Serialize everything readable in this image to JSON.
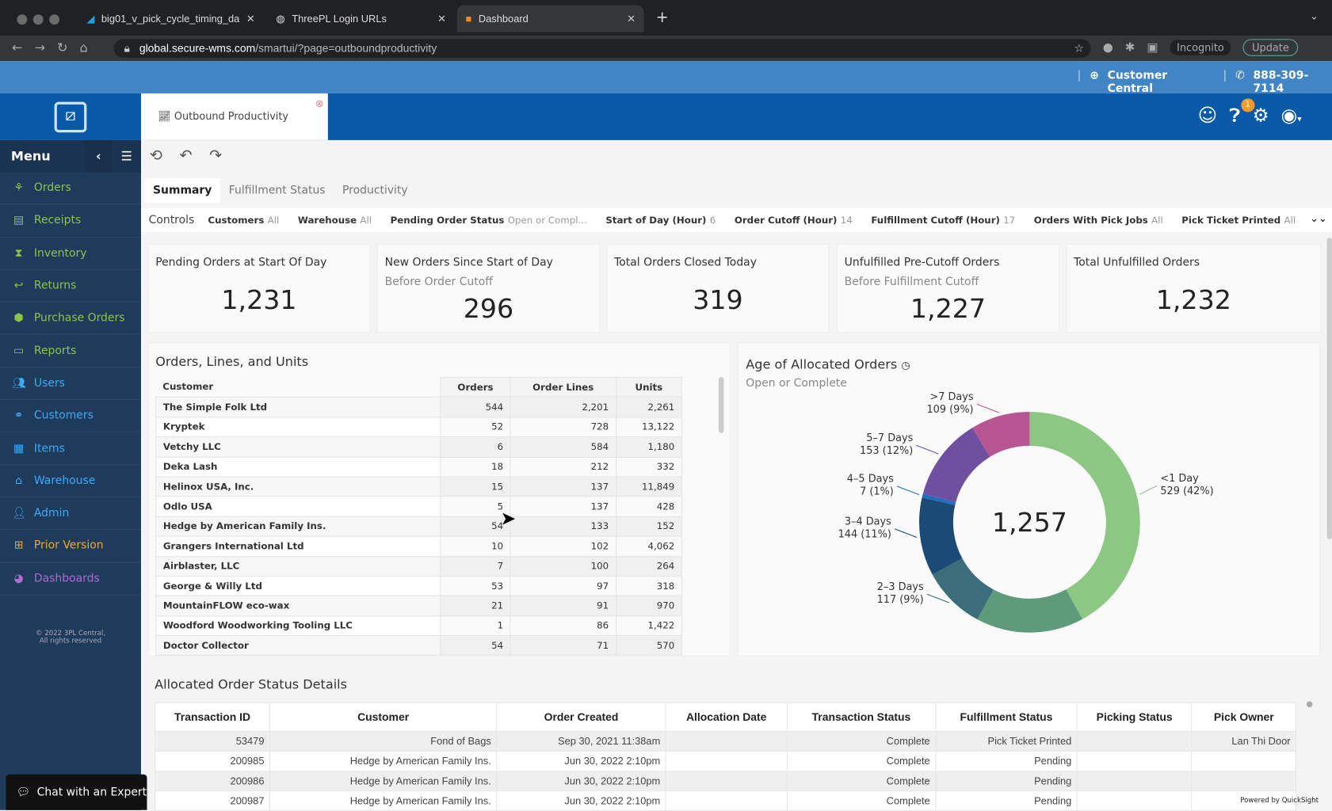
{
  "browser": {
    "tabs": [
      {
        "label": "big01_v_pick_cycle_timing_da",
        "icon": "quicksight-icon"
      },
      {
        "label": "ThreePL Login URLs",
        "icon": "globe-icon"
      },
      {
        "label": "Dashboard",
        "icon": "app-icon"
      }
    ],
    "url_domain": "global.secure-wms.com",
    "url_path": "/smartui/?page=outboundproductivity",
    "profile": "Incognito",
    "update": "Update"
  },
  "topstrip": {
    "customer_central": "Customer Central",
    "phone": "888-309-7114"
  },
  "header": {
    "app_tab": "Outbound Productivity",
    "help_badge": "1"
  },
  "sidebar": {
    "title": "Menu",
    "items": [
      {
        "label": "Orders",
        "icon": "sitemap-icon",
        "color": "#8bc34a"
      },
      {
        "label": "Receipts",
        "icon": "document-icon",
        "color": "#8bc34a"
      },
      {
        "label": "Inventory",
        "icon": "hourglass-icon",
        "color": "#8bc34a"
      },
      {
        "label": "Returns",
        "icon": "reply-icon",
        "color": "#8bc34a"
      },
      {
        "label": "Purchase Orders",
        "icon": "hexagon-icon",
        "color": "#8bc34a"
      },
      {
        "label": "Reports",
        "icon": "id-card-icon",
        "color": "#8bc34a"
      },
      {
        "label": "Users",
        "icon": "users-icon",
        "color": "#3fa9f5"
      },
      {
        "label": "Customers",
        "icon": "handshake-icon",
        "color": "#3fa9f5"
      },
      {
        "label": "Items",
        "icon": "grid-icon",
        "color": "#3fa9f5"
      },
      {
        "label": "Warehouse",
        "icon": "home-icon",
        "color": "#3fa9f5"
      },
      {
        "label": "Admin",
        "icon": "user-icon",
        "color": "#3fa9f5"
      },
      {
        "label": "Prior Version",
        "icon": "archive-icon",
        "color": "#f0a830"
      },
      {
        "label": "Dashboards",
        "icon": "gauge-icon",
        "color": "#b06ad0"
      }
    ],
    "footer1": "© 2022 3PL Central,",
    "footer2": "All rights reserved",
    "chat": "Chat with an Expert"
  },
  "tabs": [
    "Summary",
    "Fulfillment Status",
    "Productivity"
  ],
  "controls": {
    "label": "Controls",
    "items": [
      {
        "k": "Customers",
        "v": "All"
      },
      {
        "k": "Warehouse",
        "v": "All"
      },
      {
        "k": "Pending Order Status",
        "v": "Open or Compl..."
      },
      {
        "k": "Start of Day (Hour)",
        "v": "6"
      },
      {
        "k": "Order Cutoff (Hour)",
        "v": "14"
      },
      {
        "k": "Fulfillment Cutoff (Hour)",
        "v": "17"
      },
      {
        "k": "Orders With Pick Jobs",
        "v": "All"
      },
      {
        "k": "Pick Ticket Printed",
        "v": "All"
      }
    ]
  },
  "kpis": [
    {
      "title": "Pending Orders at Start Of Day",
      "sub": "",
      "value": "1,231"
    },
    {
      "title": "New Orders Since Start of Day",
      "sub": "Before Order Cutoff",
      "value": "296"
    },
    {
      "title": "Total Orders Closed Today",
      "sub": "",
      "value": "319"
    },
    {
      "title": "Unfulfilled Pre-Cutoff Orders",
      "sub": "Before Fulfillment Cutoff",
      "value": "1,227"
    },
    {
      "title": "Total Unfulfilled Orders",
      "sub": "",
      "value": "1,232"
    }
  ],
  "olu": {
    "title": "Orders, Lines, and Units",
    "columns": [
      "Customer",
      "Orders",
      "Order Lines",
      "Units"
    ],
    "rows": [
      [
        "The Simple Folk Ltd",
        "544",
        "2,201",
        "2,261"
      ],
      [
        "Kryptek",
        "52",
        "728",
        "13,122"
      ],
      [
        "Vetchy LLC",
        "6",
        "584",
        "1,180"
      ],
      [
        "Deka Lash",
        "18",
        "212",
        "332"
      ],
      [
        "Helinox USA, Inc.",
        "15",
        "137",
        "11,849"
      ],
      [
        "Odlo USA",
        "5",
        "137",
        "428"
      ],
      [
        "Hedge by American Family Ins.",
        "54",
        "133",
        "152"
      ],
      [
        "Grangers International Ltd",
        "10",
        "102",
        "4,062"
      ],
      [
        "Airblaster, LLC",
        "7",
        "100",
        "264"
      ],
      [
        "George & Willy Ltd",
        "53",
        "97",
        "318"
      ],
      [
        "MountainFLOW eco-wax",
        "21",
        "91",
        "970"
      ],
      [
        "Woodford Woodworking Tooling LLC",
        "1",
        "86",
        "1,422"
      ],
      [
        "Doctor Collector",
        "54",
        "71",
        "570"
      ]
    ]
  },
  "chart_data": {
    "type": "pie",
    "title": "Age of Allocated Orders",
    "subtitle": "Open or Complete",
    "center_total": "1,257",
    "hole": true,
    "slices": [
      {
        "label": "<1 Day",
        "value": 529,
        "text": "529 (42%)",
        "color": "#8cc784"
      },
      {
        "label": "",
        "value": 198,
        "text": "",
        "color": "#5e9b7a"
      },
      {
        "label": "2–3 Days",
        "value": 117,
        "text": "117 (9%)",
        "color": "#3b6e7a"
      },
      {
        "label": "3–4 Days",
        "value": 144,
        "text": "144 (11%)",
        "color": "#1b4a76"
      },
      {
        "label": "4–5 Days",
        "value": 7,
        "text": "7 (1%)",
        "color": "#1e6fc0"
      },
      {
        "label": "5–7 Days",
        "value": 153,
        "text": "153 (12%)",
        "color": "#6f4fa0"
      },
      {
        "label": ">7 Days",
        "value": 109,
        "text": "109 (9%)",
        "color": "#b85592"
      }
    ]
  },
  "aos": {
    "title": "Allocated Order Status Details",
    "columns": [
      "Transaction ID",
      "Customer",
      "Order Created",
      "Allocation Date",
      "Transaction Status",
      "Fulfillment Status",
      "Picking Status",
      "Pick Owner"
    ],
    "rows": [
      [
        "53479",
        "Fond of Bags",
        "Sep 30, 2021 11:38am",
        "",
        "Complete",
        "Pick Ticket Printed",
        "",
        "Lan Thi Door"
      ],
      [
        "200985",
        "Hedge by American Family Ins.",
        "Jun 30, 2022 2:10pm",
        "",
        "Complete",
        "Pending",
        "",
        ""
      ],
      [
        "200986",
        "Hedge by American Family Ins.",
        "Jun 30, 2022 2:10pm",
        "",
        "Complete",
        "Pending",
        "",
        ""
      ],
      [
        "200987",
        "Hedge by American Family Ins.",
        "Jun 30, 2022 2:10pm",
        "",
        "Complete",
        "Pending",
        "",
        ""
      ]
    ]
  },
  "powered": "Powered by QuickSight"
}
